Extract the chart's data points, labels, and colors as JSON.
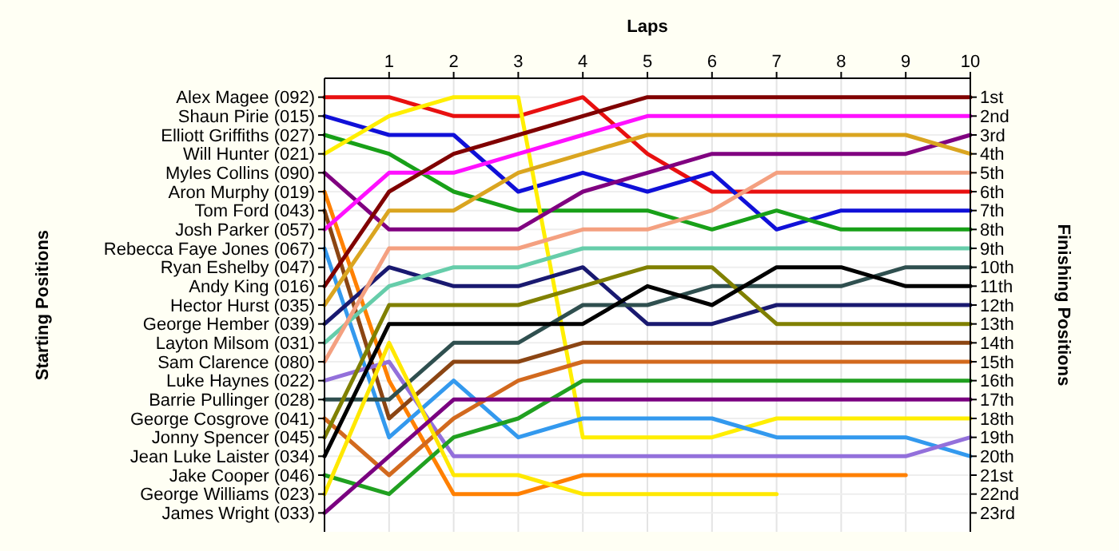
{
  "chart_data": {
    "type": "line",
    "xlabel": "Laps",
    "y2label": "Finishing Positions",
    "x": [
      0,
      1,
      2,
      3,
      4,
      5,
      6,
      7,
      8,
      9,
      10
    ],
    "xlim": [
      0,
      10
    ],
    "xticks": [
      1,
      2,
      3,
      4,
      5,
      6,
      7,
      8,
      9,
      10
    ],
    "y2lim": [
      24,
      0
    ],
    "y2ticks": [
      {
        "value": 1,
        "label": "1st"
      },
      {
        "value": 2,
        "label": "2nd"
      },
      {
        "value": 3,
        "label": "3rd"
      },
      {
        "value": 4,
        "label": "4th"
      },
      {
        "value": 5,
        "label": "5th"
      },
      {
        "value": 6,
        "label": "6th"
      },
      {
        "value": 7,
        "label": "7th"
      },
      {
        "value": 8,
        "label": "8th"
      },
      {
        "value": 9,
        "label": "9th"
      },
      {
        "value": 10,
        "label": "10th"
      },
      {
        "value": 11,
        "label": "11th"
      },
      {
        "value": 12,
        "label": "12th"
      },
      {
        "value": 13,
        "label": "13th"
      },
      {
        "value": 14,
        "label": "14th"
      },
      {
        "value": 15,
        "label": "15th"
      },
      {
        "value": 16,
        "label": "16th"
      },
      {
        "value": 17,
        "label": "17th"
      },
      {
        "value": 18,
        "label": "18th"
      },
      {
        "value": 19,
        "label": "19th"
      },
      {
        "value": 20,
        "label": "20th"
      },
      {
        "value": 21,
        "label": "21st"
      },
      {
        "value": 22,
        "label": "22nd"
      },
      {
        "value": 23,
        "label": "23rd"
      }
    ],
    "grid": true,
    "marker": "none",
    "line_style": "solid",
    "annotations": [
      "Starting Positions",
      "Alex Magee (092)",
      "Shaun Pirie (015)",
      "Elliott Griffiths (027)",
      "Will Hunter (021)",
      "Myles Collins (090)",
      "Aron Murphy (019)",
      "Tom Ford (043)",
      "Josh Parker (057)",
      "Rebecca Faye Jones (067)",
      "Ryan Eshelby (047)",
      "Andy King (016)",
      "Hector Hurst (035)",
      "George Hember (039)",
      "Layton Milsom (031)",
      "Sam Clarence (080)",
      "Luke Haynes (022)",
      "Barrie Pullinger (028)",
      "George Cosgrove (041)",
      "Jonny Spencer (045)",
      "Jean Luke Laister (034)",
      "Jake Cooper (046)",
      "George Williams (023)",
      "James Wright (033)"
    ],
    "series": [
      {
        "axis": "y2",
        "color": "#e81010",
        "values": [
          1,
          1,
          2,
          2,
          1,
          4,
          6,
          6,
          6,
          6,
          6
        ]
      },
      {
        "axis": "y2",
        "color": "#1010d8",
        "values": [
          2,
          3,
          3,
          6,
          5,
          6,
          5,
          8,
          7,
          7,
          7
        ]
      },
      {
        "axis": "y2",
        "color": "#18a018",
        "values": [
          3,
          4,
          6,
          7,
          7,
          7,
          8,
          7,
          8,
          8,
          8
        ]
      },
      {
        "axis": "y2",
        "color": "#ffee00",
        "values": [
          4,
          2,
          1,
          1,
          19,
          19,
          19,
          18,
          18,
          18,
          18
        ]
      },
      {
        "axis": "y2",
        "color": "#800080",
        "values": [
          5,
          8,
          8,
          8,
          6,
          5,
          4,
          4,
          4,
          4,
          3
        ]
      },
      {
        "axis": "y2",
        "color": "#ff8000",
        "values": [
          6,
          16,
          22,
          22,
          21,
          21,
          21,
          21,
          21,
          21,
          null
        ]
      },
      {
        "axis": "y2",
        "color": "#8b4513",
        "values": [
          7,
          18,
          15,
          15,
          14,
          14,
          14,
          14,
          14,
          14,
          14
        ]
      },
      {
        "axis": "y2",
        "color": "#ff10ff",
        "values": [
          8,
          5,
          5,
          4,
          3,
          2,
          2,
          2,
          2,
          2,
          2
        ]
      },
      {
        "axis": "y2",
        "color": "#3399ee",
        "values": [
          9,
          19,
          16,
          19,
          18,
          18,
          18,
          19,
          19,
          19,
          20
        ]
      },
      {
        "axis": "y2",
        "color": "#800000",
        "values": [
          11,
          6,
          4,
          3,
          2,
          1,
          1,
          1,
          1,
          1,
          1
        ]
      },
      {
        "axis": "y2",
        "color": "#daa520",
        "values": [
          12,
          7,
          7,
          5,
          4,
          3,
          3,
          3,
          3,
          3,
          4
        ]
      },
      {
        "axis": "y2",
        "color": "#191970",
        "values": [
          13,
          10,
          11,
          11,
          10,
          13,
          13,
          12,
          12,
          12,
          12
        ]
      },
      {
        "axis": "y2",
        "color": "#66cdaa",
        "values": [
          14,
          11,
          10,
          10,
          9,
          9,
          9,
          9,
          9,
          9,
          9
        ]
      },
      {
        "axis": "y2",
        "color": "#f4a080",
        "values": [
          15,
          9,
          9,
          9,
          8,
          8,
          7,
          5,
          5,
          5,
          5
        ]
      },
      {
        "axis": "y2",
        "color": "#9370db",
        "values": [
          16,
          15,
          20,
          20,
          20,
          20,
          20,
          20,
          20,
          20,
          19
        ]
      },
      {
        "axis": "y2",
        "color": "#2f4f4f",
        "values": [
          17,
          17,
          14,
          14,
          12,
          12,
          11,
          11,
          11,
          10,
          10
        ]
      },
      {
        "axis": "y2",
        "color": "#d2691e",
        "values": [
          18,
          21,
          18,
          16,
          15,
          15,
          15,
          15,
          15,
          15,
          15
        ]
      },
      {
        "axis": "y2",
        "color": "#808000",
        "values": [
          19,
          12,
          12,
          12,
          11,
          10,
          10,
          13,
          13,
          13,
          13
        ]
      },
      {
        "axis": "y2",
        "color": "#000000",
        "values": [
          20,
          13,
          13,
          13,
          13,
          11,
          12,
          10,
          10,
          11,
          11
        ]
      },
      {
        "axis": "y2",
        "color": "#20a020",
        "values": [
          21,
          22,
          19,
          18,
          16,
          16,
          16,
          16,
          16,
          16,
          16
        ]
      },
      {
        "axis": "y2",
        "color": "#ffe800",
        "values": [
          22,
          14,
          21,
          21,
          22,
          22,
          22,
          22,
          null,
          null,
          null
        ]
      },
      {
        "axis": "y2",
        "color": "#7a0080",
        "values": [
          23,
          20,
          17,
          17,
          17,
          17,
          17,
          17,
          17,
          17,
          17
        ]
      }
    ]
  }
}
